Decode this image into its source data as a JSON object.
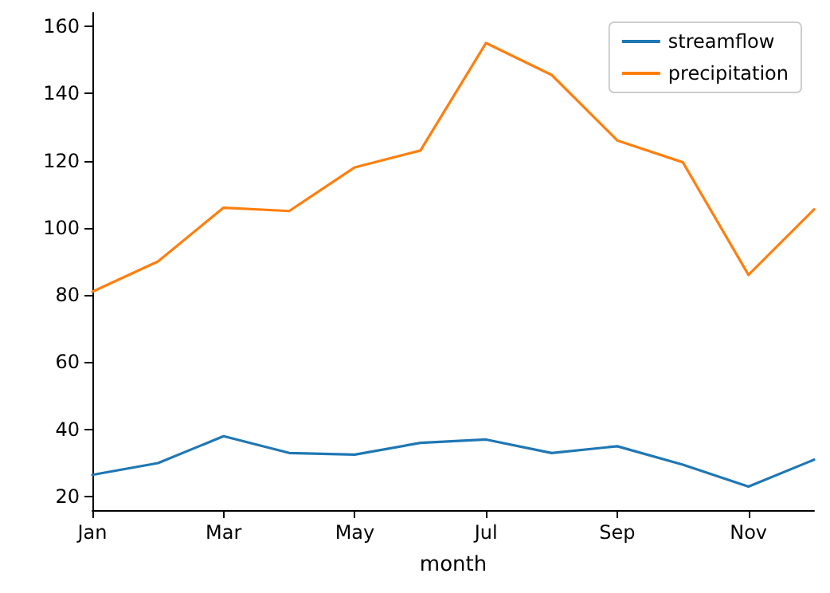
{
  "chart_data": {
    "type": "line",
    "xlabel": "month",
    "categories": [
      "Jan",
      null,
      "Mar",
      null,
      "May",
      null,
      "Jul",
      null,
      "Sep",
      null,
      "Nov",
      null
    ],
    "series": [
      {
        "name": "streamflow",
        "color": "#1f77b4",
        "values": [
          26.5,
          30,
          38,
          33,
          32.5,
          36,
          37,
          33,
          35,
          29.5,
          23,
          31
        ]
      },
      {
        "name": "precipitation",
        "color": "#ff7f0e",
        "values": [
          81,
          90,
          106,
          105,
          118,
          123,
          155,
          145.5,
          126,
          119.5,
          86,
          105.5
        ]
      }
    ],
    "ylim": [
      16,
      164
    ],
    "yticks": [
      20,
      40,
      60,
      80,
      100,
      120,
      140,
      160
    ],
    "grid": false,
    "legend": "top right",
    "marker": "none",
    "line_style": "solid"
  }
}
